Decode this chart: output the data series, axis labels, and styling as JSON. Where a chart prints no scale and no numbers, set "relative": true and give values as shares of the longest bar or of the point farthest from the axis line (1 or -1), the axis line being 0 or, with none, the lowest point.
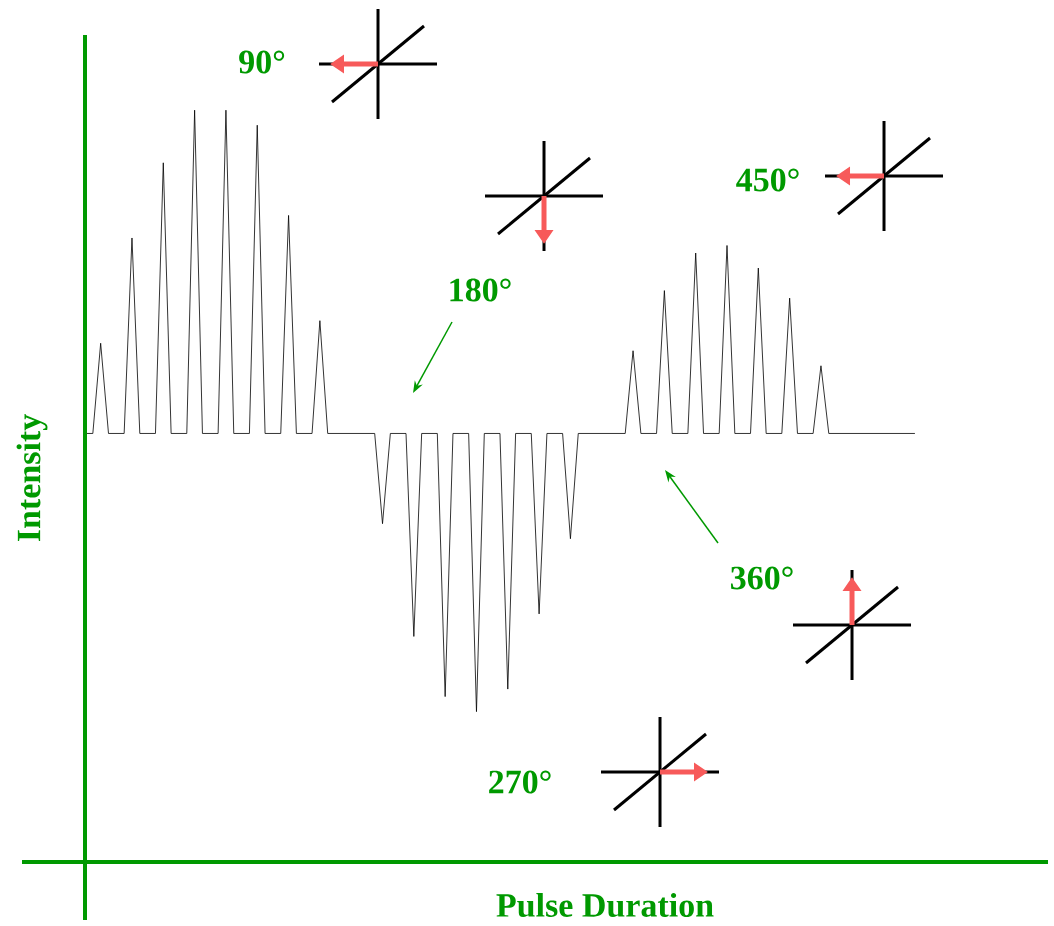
{
  "chart_data": {
    "type": "line",
    "relative": true,
    "xlabel": "Pulse Duration",
    "ylabel": "Intensity",
    "categories": [
      null,
      null,
      null,
      null,
      null,
      null,
      null,
      null,
      null,
      null,
      null,
      null,
      null,
      null,
      null,
      null,
      null,
      null,
      null,
      null,
      null,
      null,
      null,
      null,
      null,
      null,
      null,
      null,
      null,
      null,
      null,
      null,
      null,
      null,
      null,
      null,
      null,
      null,
      null,
      null,
      null,
      null,
      null,
      null,
      null,
      null,
      null,
      null,
      null,
      null,
      null,
      null,
      null,
      null,
      null,
      null,
      null,
      null,
      null,
      null,
      null,
      null,
      null,
      null,
      null,
      null,
      null,
      null,
      null,
      null,
      null,
      null,
      null,
      null,
      null,
      null,
      null,
      null,
      null,
      null,
      null,
      null,
      null,
      null,
      null,
      null,
      null,
      null,
      null,
      null,
      null,
      null,
      null,
      null,
      null,
      null,
      null,
      null,
      null,
      null,
      null,
      null,
      null,
      null,
      null,
      null,
      null
    ],
    "series": [
      {
        "color": "#000000",
        "values": [
          0.57,
          0.57,
          0.69,
          0.57,
          0.57,
          0.57,
          0.83,
          0.57,
          0.57,
          0.57,
          0.93,
          0.57,
          0.57,
          0.57,
          1,
          0.57,
          0.57,
          0.57,
          1,
          0.57,
          0.57,
          0.57,
          0.98,
          0.57,
          0.57,
          0.57,
          0.86,
          0.57,
          0.57,
          0.57,
          0.72,
          0.57,
          0.57,
          0.57,
          0.57,
          0.57,
          0.57,
          0.57,
          0.45,
          0.57,
          0.57,
          0.57,
          0.3,
          0.57,
          0.57,
          0.57,
          0.22,
          0.57,
          0.57,
          0.57,
          0.2,
          0.57,
          0.57,
          0.57,
          0.23,
          0.57,
          0.57,
          0.57,
          0.33,
          0.57,
          0.57,
          0.57,
          0.43,
          0.57,
          0.57,
          0.57,
          0.57,
          0.57,
          0.57,
          0.57,
          0.68,
          0.57,
          0.57,
          0.57,
          0.76,
          0.57,
          0.57,
          0.57,
          0.81,
          0.57,
          0.57,
          0.57,
          0.82,
          0.57,
          0.57,
          0.57,
          0.79,
          0.57,
          0.57,
          0.57,
          0.75,
          0.57,
          0.57,
          0.57,
          0.66,
          0.57,
          0.57,
          0.57,
          0.57,
          0.57,
          0.57,
          0.57,
          0.57,
          0.57,
          0.57,
          0.57,
          0.57
        ]
      }
    ],
    "annotations": [
      "90°",
      "180°",
      "270°",
      "360°",
      "450°"
    ]
  }
}
